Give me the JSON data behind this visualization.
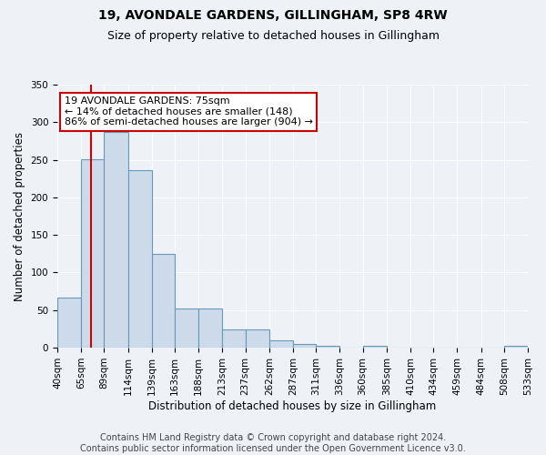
{
  "title": "19, AVONDALE GARDENS, GILLINGHAM, SP8 4RW",
  "subtitle": "Size of property relative to detached houses in Gillingham",
  "xlabel": "Distribution of detached houses by size in Gillingham",
  "ylabel": "Number of detached properties",
  "bin_edges": [
    40,
    65,
    89,
    114,
    139,
    163,
    188,
    213,
    237,
    262,
    287,
    311,
    336,
    360,
    385,
    410,
    434,
    459,
    484,
    508,
    533
  ],
  "bar_heights": [
    67,
    251,
    287,
    236,
    125,
    52,
    52,
    24,
    24,
    10,
    5,
    3,
    0,
    3,
    0,
    0,
    0,
    0,
    0,
    3
  ],
  "bar_color": "#ccdaea",
  "bar_edge_color": "#6699bb",
  "property_size": 75,
  "annotation_line1": "19 AVONDALE GARDENS: 75sqm",
  "annotation_line2": "← 14% of detached houses are smaller (148)",
  "annotation_line3": "86% of semi-detached houses are larger (904) →",
  "annotation_box_color": "#ffffff",
  "annotation_box_edge_color": "#cc0000",
  "vline_color": "#cc0000",
  "ylim": [
    0,
    350
  ],
  "yticks": [
    0,
    50,
    100,
    150,
    200,
    250,
    300,
    350
  ],
  "footer_line1": "Contains HM Land Registry data © Crown copyright and database right 2024.",
  "footer_line2": "Contains public sector information licensed under the Open Government Licence v3.0.",
  "bg_color": "#eef2f7",
  "grid_color": "#ffffff",
  "title_fontsize": 10,
  "subtitle_fontsize": 9,
  "axis_label_fontsize": 8.5,
  "tick_fontsize": 7.5,
  "annotation_fontsize": 8,
  "footer_fontsize": 7
}
